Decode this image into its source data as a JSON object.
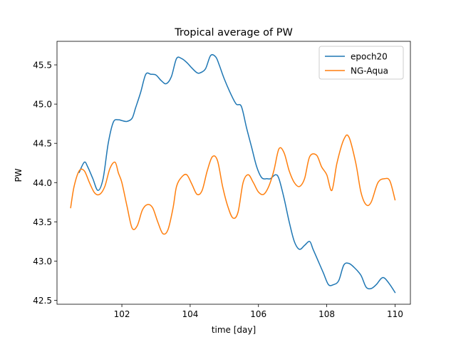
{
  "chart_data": {
    "type": "line",
    "title": "Tropical average of PW",
    "xlabel": "time [day]",
    "ylabel": "PW",
    "xlim": [
      100.1,
      110.45
    ],
    "ylim": [
      42.45,
      45.8
    ],
    "xticks": [
      102,
      104,
      106,
      108,
      110
    ],
    "yticks": [
      42.5,
      43.0,
      43.5,
      44.0,
      44.5,
      45.0,
      45.5
    ],
    "xtick_labels": [
      "102",
      "104",
      "106",
      "108",
      "110"
    ],
    "ytick_labels": [
      "42.5",
      "43.0",
      "43.5",
      "44.0",
      "44.5",
      "45.0",
      "45.5"
    ],
    "grid": false,
    "legend_position": "upper right",
    "series": [
      {
        "name": "epoch20",
        "color": "#1f77b4",
        "x": [
          100.75,
          100.9,
          101.0,
          101.15,
          101.3,
          101.45,
          101.6,
          101.75,
          101.9,
          102.0,
          102.15,
          102.3,
          102.4,
          102.55,
          102.7,
          102.85,
          103.0,
          103.15,
          103.3,
          103.45,
          103.6,
          103.75,
          103.9,
          104.05,
          104.2,
          104.3,
          104.45,
          104.6,
          104.75,
          104.85,
          105.0,
          105.2,
          105.35,
          105.5,
          105.65,
          105.8,
          105.95,
          106.1,
          106.25,
          106.35,
          106.5,
          106.6,
          106.75,
          106.9,
          107.05,
          107.2,
          107.35,
          107.5,
          107.6,
          107.75,
          107.9,
          108.05,
          108.2,
          108.35,
          108.5,
          108.65,
          108.8,
          109.0,
          109.15,
          109.3,
          109.45,
          109.6,
          109.7,
          109.85,
          110.0
        ],
        "y": [
          44.13,
          44.26,
          44.2,
          44.05,
          43.9,
          44.05,
          44.5,
          44.77,
          44.8,
          44.79,
          44.78,
          44.82,
          44.95,
          45.15,
          45.38,
          45.38,
          45.37,
          45.3,
          45.26,
          45.35,
          45.58,
          45.58,
          45.53,
          45.46,
          45.4,
          45.4,
          45.45,
          45.62,
          45.6,
          45.5,
          45.32,
          45.12,
          45.0,
          44.97,
          44.7,
          44.45,
          44.2,
          44.06,
          44.05,
          44.05,
          44.1,
          44.05,
          43.8,
          43.5,
          43.25,
          43.15,
          43.2,
          43.25,
          43.15,
          43.0,
          42.85,
          42.7,
          42.7,
          42.75,
          42.95,
          42.97,
          42.92,
          42.82,
          42.67,
          42.65,
          42.7,
          42.78,
          42.78,
          42.7,
          42.6
        ]
      },
      {
        "name": "NG-Aqua",
        "color": "#ff7f0e",
        "x": [
          100.5,
          100.6,
          100.75,
          100.9,
          101.05,
          101.2,
          101.35,
          101.5,
          101.65,
          101.8,
          101.9,
          102.0,
          102.15,
          102.3,
          102.45,
          102.6,
          102.75,
          102.9,
          103.05,
          103.2,
          103.35,
          103.5,
          103.6,
          103.75,
          103.9,
          104.05,
          104.2,
          104.35,
          104.5,
          104.65,
          104.8,
          104.95,
          105.1,
          105.25,
          105.4,
          105.55,
          105.7,
          105.85,
          106.0,
          106.15,
          106.3,
          106.45,
          106.6,
          106.75,
          106.9,
          107.05,
          107.2,
          107.35,
          107.5,
          107.7,
          107.85,
          108.0,
          108.15,
          108.3,
          108.5,
          108.65,
          108.85,
          109.0,
          109.15,
          109.3,
          109.5,
          109.7,
          109.85,
          110.0
        ],
        "y": [
          43.68,
          43.95,
          44.15,
          44.15,
          44.0,
          43.87,
          43.85,
          43.95,
          44.18,
          44.26,
          44.12,
          44.0,
          43.7,
          43.42,
          43.45,
          43.65,
          43.72,
          43.68,
          43.5,
          43.35,
          43.4,
          43.68,
          43.95,
          44.07,
          44.1,
          43.98,
          43.85,
          43.9,
          44.15,
          44.33,
          44.28,
          43.95,
          43.7,
          43.55,
          43.62,
          44.0,
          44.1,
          44.0,
          43.88,
          43.85,
          43.95,
          44.15,
          44.43,
          44.38,
          44.15,
          44.0,
          43.95,
          44.05,
          44.33,
          44.35,
          44.2,
          44.1,
          43.9,
          44.25,
          44.55,
          44.58,
          44.25,
          43.88,
          43.72,
          43.75,
          44.0,
          44.05,
          44.02,
          43.78
        ]
      }
    ]
  }
}
